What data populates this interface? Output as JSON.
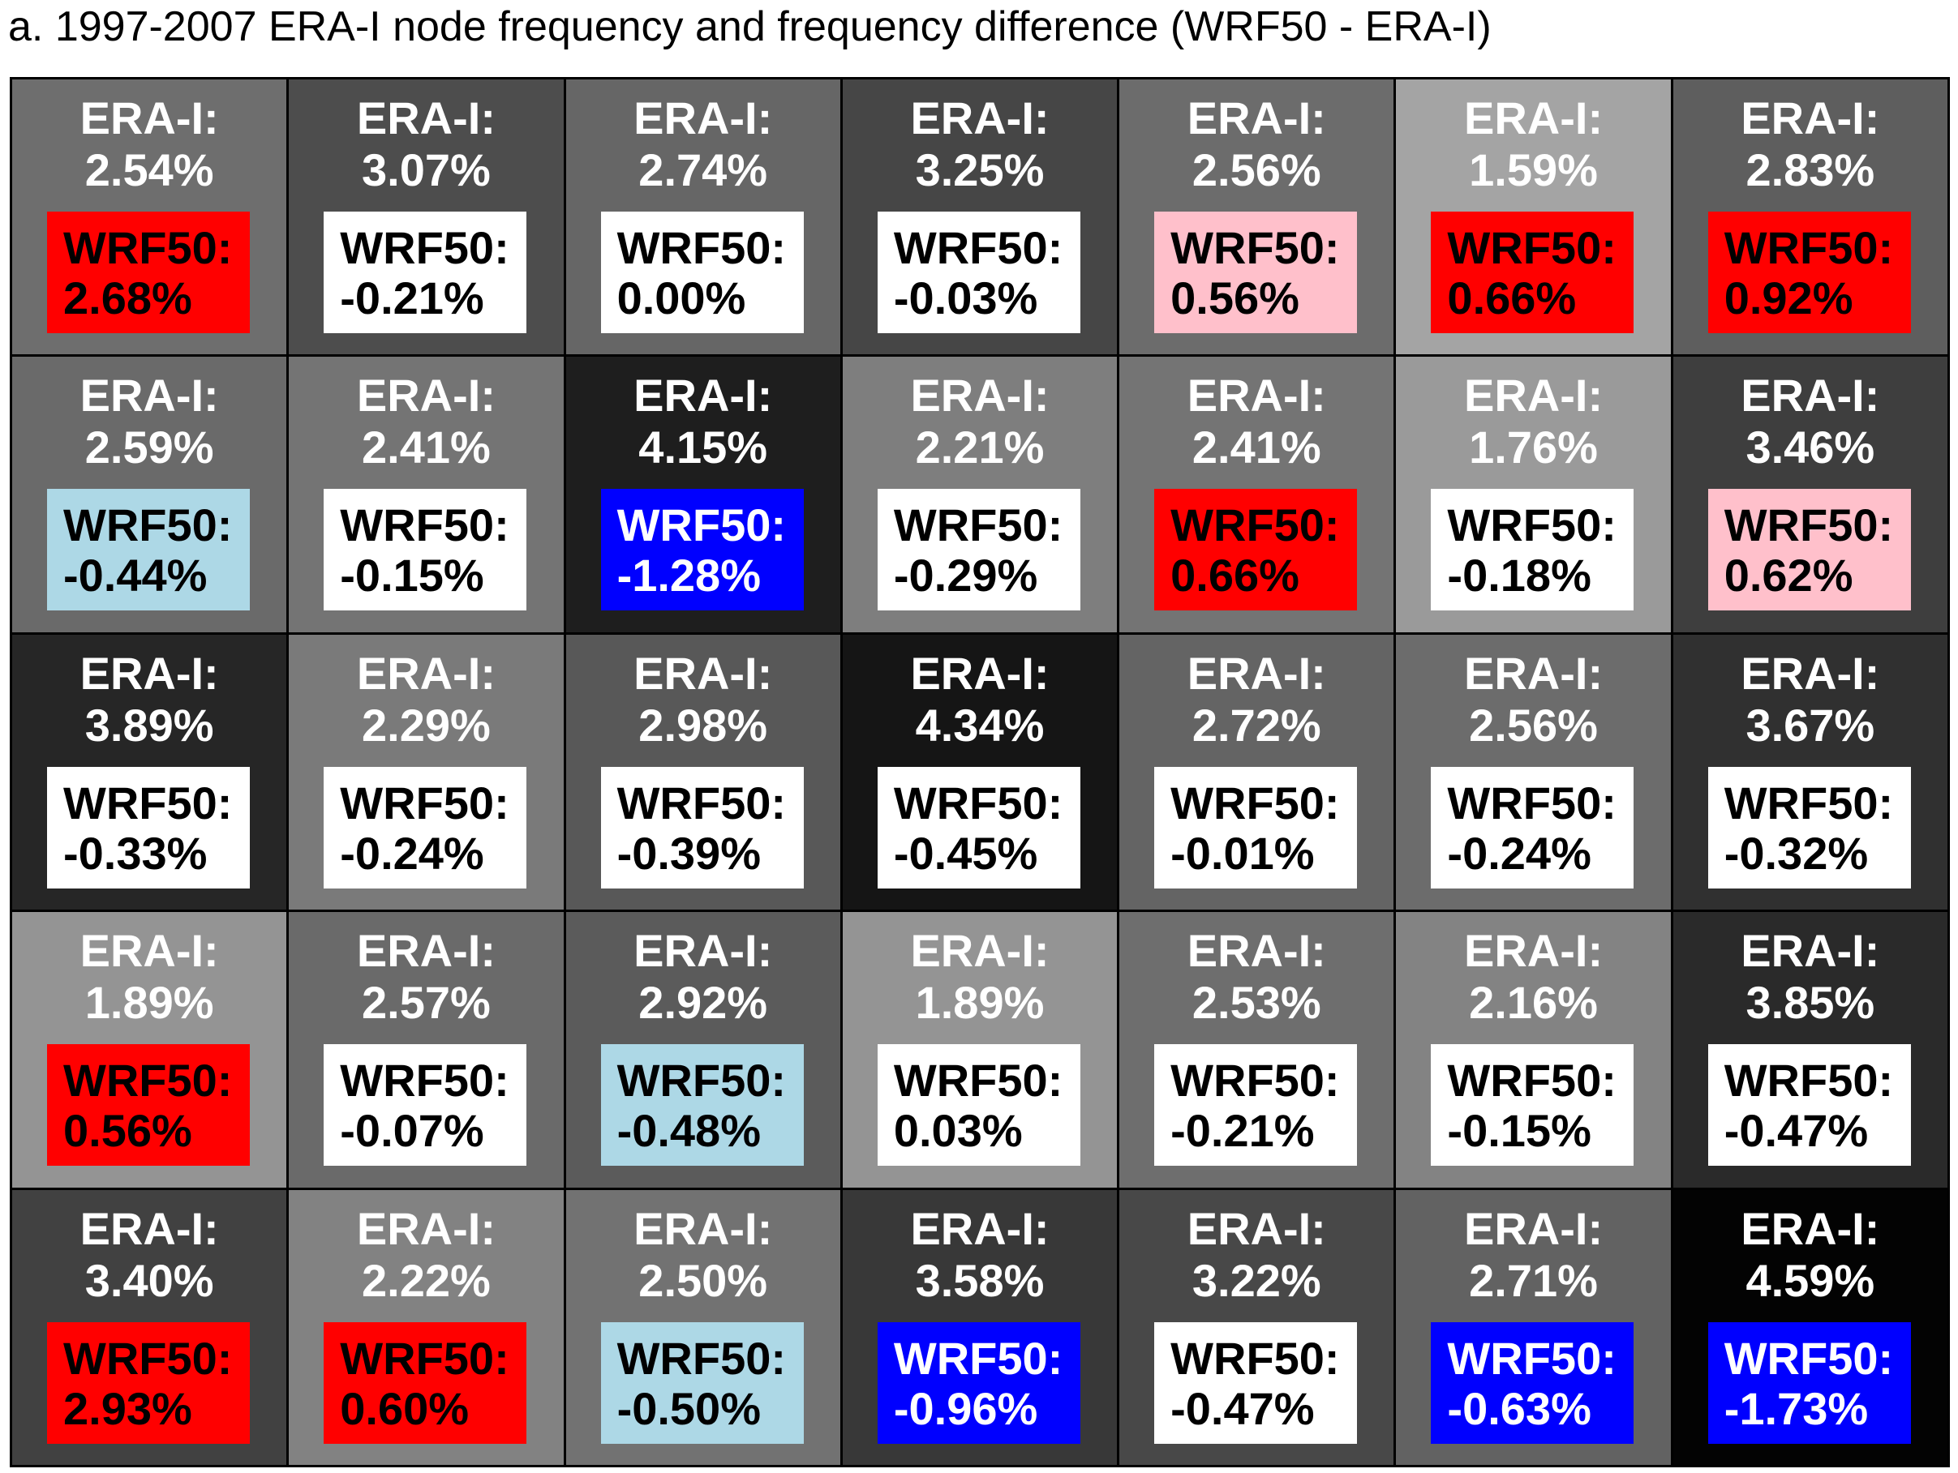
{
  "title": "a. 1997-2007 ERA-I node frequency and frequency difference (WRF50 - ERA-I)",
  "chart_data": {
    "type": "table",
    "rows": 5,
    "cols": 7,
    "era_label": "ERA-I:",
    "wrf_label": "WRF50:",
    "era_values": [
      [
        "2.54%",
        "3.07%",
        "2.74%",
        "3.25%",
        "2.56%",
        "1.59%",
        "2.83%"
      ],
      [
        "2.59%",
        "2.41%",
        "4.15%",
        "2.21%",
        "2.41%",
        "1.76%",
        "3.46%"
      ],
      [
        "3.89%",
        "2.29%",
        "2.98%",
        "4.34%",
        "2.72%",
        "2.56%",
        "3.67%"
      ],
      [
        "1.89%",
        "2.57%",
        "2.92%",
        "1.89%",
        "2.53%",
        "2.16%",
        "3.85%"
      ],
      [
        "3.40%",
        "2.22%",
        "2.50%",
        "3.58%",
        "3.22%",
        "2.71%",
        "4.59%"
      ]
    ],
    "wrf_diff_values": [
      [
        "2.68%",
        "-0.21%",
        "0.00%",
        "-0.03%",
        "0.56%",
        "0.66%",
        "0.92%"
      ],
      [
        "-0.44%",
        "-0.15%",
        "-1.28%",
        "-0.29%",
        "0.66%",
        "-0.18%",
        "0.62%"
      ],
      [
        "-0.33%",
        "-0.24%",
        "-0.39%",
        "-0.45%",
        "-0.01%",
        "-0.24%",
        "-0.32%"
      ],
      [
        "0.56%",
        "-0.07%",
        "-0.48%",
        "0.03%",
        "-0.21%",
        "-0.15%",
        "-0.47%"
      ],
      [
        "2.93%",
        "0.60%",
        "-0.50%",
        "-0.96%",
        "-0.47%",
        "-0.63%",
        "-1.73%"
      ]
    ],
    "cell_shades": [
      [
        "#6e6e6e",
        "#4d4d4d",
        "#666666",
        "#464646",
        "#6c6c6c",
        "#a4a4a4",
        "#5e5e5e"
      ],
      [
        "#6a6a6a",
        "#747474",
        "#1e1e1e",
        "#7e7e7e",
        "#747474",
        "#9a9a9a",
        "#3e3e3e"
      ],
      [
        "#262626",
        "#7a7a7a",
        "#585858",
        "#151515",
        "#646464",
        "#6c6c6c",
        "#303030"
      ],
      [
        "#949494",
        "#6a6a6a",
        "#5b5b5b",
        "#949494",
        "#6e6e6e",
        "#838383",
        "#2a2a2a"
      ],
      [
        "#414141",
        "#828282",
        "#727272",
        "#383838",
        "#484848",
        "#626262",
        "#030303"
      ]
    ],
    "box_colors": [
      [
        "#ff0000",
        "#ffffff",
        "#ffffff",
        "#ffffff",
        "#ffc0cb",
        "#ff0000",
        "#ff0000"
      ],
      [
        "#add8e6",
        "#ffffff",
        "#0000ff",
        "#ffffff",
        "#ff0000",
        "#ffffff",
        "#ffc0cb"
      ],
      [
        "#ffffff",
        "#ffffff",
        "#ffffff",
        "#ffffff",
        "#ffffff",
        "#ffffff",
        "#ffffff"
      ],
      [
        "#ff0000",
        "#ffffff",
        "#add8e6",
        "#ffffff",
        "#ffffff",
        "#ffffff",
        "#ffffff"
      ],
      [
        "#ff0000",
        "#ff0000",
        "#add8e6",
        "#0000ff",
        "#ffffff",
        "#0000ff",
        "#0000ff"
      ]
    ],
    "box_text_colors": [
      [
        "#000000",
        "#000000",
        "#000000",
        "#000000",
        "#000000",
        "#000000",
        "#000000"
      ],
      [
        "#000000",
        "#000000",
        "#ffffff",
        "#000000",
        "#000000",
        "#000000",
        "#000000"
      ],
      [
        "#000000",
        "#000000",
        "#000000",
        "#000000",
        "#000000",
        "#000000",
        "#000000"
      ],
      [
        "#000000",
        "#000000",
        "#000000",
        "#000000",
        "#000000",
        "#000000",
        "#000000"
      ],
      [
        "#000000",
        "#000000",
        "#000000",
        "#ffffff",
        "#000000",
        "#ffffff",
        "#ffffff"
      ]
    ]
  }
}
